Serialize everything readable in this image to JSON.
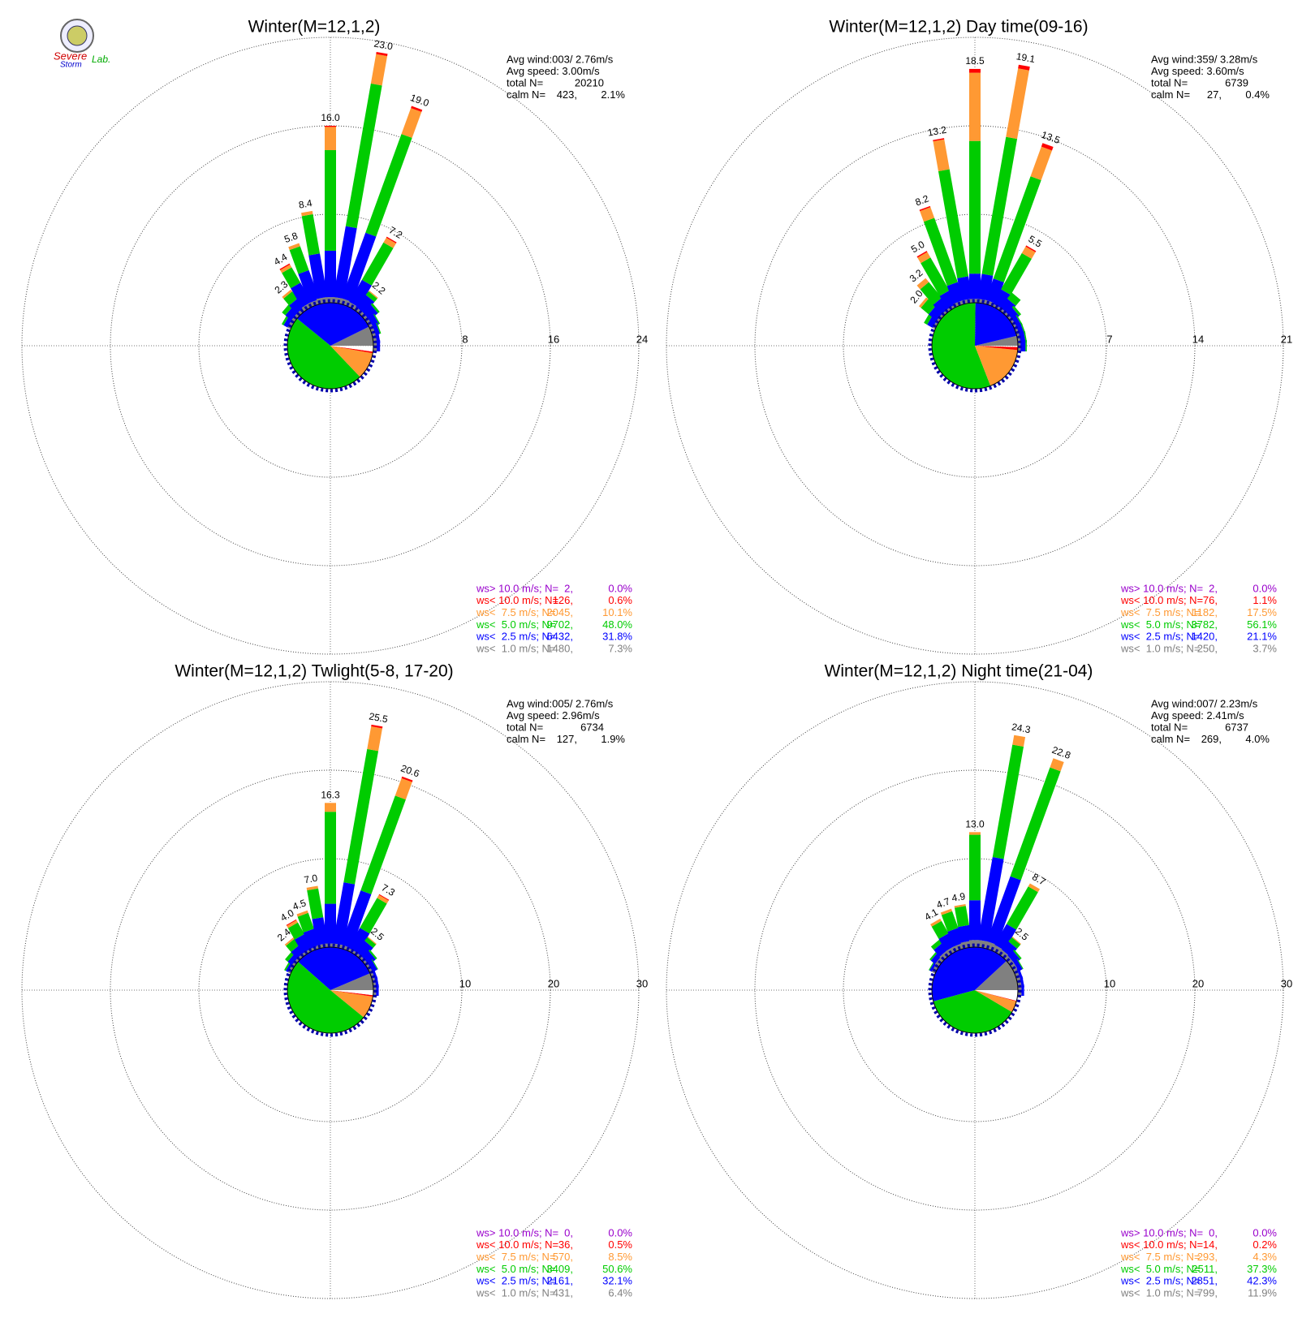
{
  "logo": {
    "line1": "Severe",
    "line2": "Storm",
    "line3": "Lab."
  },
  "chart_data": [
    {
      "type": "windrose",
      "title": "Winter(M=12,1,2)",
      "stats": {
        "avg_wind": "Avg wind:003/ 2.76m/s",
        "avg_speed": "Avg speed: 3.00m/s",
        "total_label": "total N=",
        "total": 20210,
        "calm_label": "calm N=",
        "calm": {
          "value": 423,
          "label": "423,"
        },
        "calm_percent": {
          "value": 2.1,
          "label": "2.1%"
        }
      },
      "rlim": [
        0,
        24
      ],
      "rticks": [
        8,
        16,
        24
      ],
      "directions": [
        300,
        310,
        320,
        330,
        340,
        350,
        0,
        10,
        20,
        30,
        40,
        50,
        60,
        70,
        80,
        90
      ],
      "total_labels": [
        null,
        null,
        2.3,
        4.4,
        5.8,
        8.4,
        {
          "value": 16,
          "label": "16.0"
        },
        {
          "value": 23,
          "label": "23.0"
        },
        {
          "value": 19,
          "label": "19.0"
        },
        7.2,
        2.2,
        null,
        null,
        null,
        null,
        null
      ],
      "series": [
        {
          "name": "ws<  1.0 m/s; N=",
          "color": "#808080",
          "values": [
            0.3,
            0.3,
            0.3,
            0.4,
            0.4,
            0.5,
            0.5,
            0.5,
            0.5,
            0.4,
            0.3,
            0.3,
            0.3,
            0.3,
            0.3,
            0.3
          ],
          "count": {
            "value": 1480,
            "label": "1480,"
          },
          "percent": {
            "value": 7.3,
            "label": "7.3%"
          }
        },
        {
          "name": "ws<  2.5 m/s; N=",
          "color": "#0000ff",
          "values": [
            0.4,
            0.7,
            1.0,
            2.0,
            2.8,
            4.0,
            4.2,
            6.5,
            6.3,
            2.3,
            1.4,
            1.0,
            0.6,
            0.4,
            0.3,
            0.3
          ],
          "count": {
            "value": 6432,
            "label": "6432,"
          },
          "percent": {
            "value": 31.8,
            "label": "31.8%"
          }
        },
        {
          "name": "ws<  5.0 m/s; N=",
          "color": "#00cc00",
          "values": [
            0.2,
            0.4,
            0.8,
            1.6,
            2.3,
            3.6,
            9.1,
            13.1,
            9.5,
            3.9,
            0.4,
            0.2,
            0.1,
            0.1,
            0,
            0
          ],
          "count": {
            "value": 9702,
            "label": "9702,"
          },
          "percent": {
            "value": 48.0,
            "label": "48.0%"
          }
        },
        {
          "name": "ws<  7.5 m/s; N=",
          "color": "#ff9933",
          "values": [
            0,
            0,
            0.2,
            0.3,
            0.3,
            0.3,
            2.1,
            2.7,
            2.5,
            0.5,
            0.1,
            0,
            0,
            0,
            0,
            0
          ],
          "count": {
            "value": 2045,
            "label": "2045,"
          },
          "percent": {
            "value": 10.1,
            "label": "10.1%"
          }
        },
        {
          "name": "ws< 10.0 m/s; N=",
          "color": "#ff0000",
          "values": [
            0,
            0,
            0,
            0.1,
            0,
            0,
            0.1,
            0.2,
            0.2,
            0.1,
            0,
            0,
            0,
            0,
            0,
            0
          ],
          "count": {
            "value": 126,
            "label": "126,"
          },
          "percent": {
            "value": 0.6,
            "label": "0.6%"
          }
        },
        {
          "name": "ws> 10.0 m/s; N=",
          "color": "#9900cc",
          "count": {
            "value": 2,
            "label": "2,"
          },
          "percent": {
            "value": 0.0,
            "label": "0.0%"
          }
        }
      ]
    },
    {
      "type": "windrose",
      "title": "Winter(M=12,1,2) Day time(09-16)",
      "stats": {
        "avg_wind": "Avg wind:359/ 3.28m/s",
        "avg_speed": "Avg speed: 3.60m/s",
        "total_label": "total N=",
        "total": 6739,
        "calm_label": "calm N=",
        "calm": {
          "value": 27,
          "label": "27,"
        },
        "calm_percent": {
          "value": 0.4,
          "label": "0.4%"
        }
      },
      "rlim": [
        0,
        21
      ],
      "rticks": [
        7,
        14,
        21
      ],
      "directions": [
        300,
        310,
        320,
        330,
        340,
        350,
        0,
        10,
        20,
        30,
        40,
        50,
        60,
        70,
        80,
        90
      ],
      "total_labels": [
        null,
        {
          "value": 2,
          "label": "2.0"
        },
        3.2,
        {
          "value": 5,
          "label": "5.0"
        },
        8.2,
        13.2,
        18.5,
        19.1,
        13.5,
        5.5,
        null,
        null,
        null,
        null,
        null,
        null
      ],
      "series": [
        {
          "name": "ws<  1.0 m/s; N=",
          "color": "#808080",
          "values": [
            0.2,
            0.2,
            0.2,
            0.2,
            0.3,
            0.3,
            0.3,
            0.3,
            0.3,
            0.2,
            0.2,
            0.2,
            0.2,
            0.2,
            0.2,
            0.2
          ],
          "count": {
            "value": 250,
            "label": "250,"
          },
          "percent": {
            "value": 3.7,
            "label": "3.7%"
          }
        },
        {
          "name": "ws<  2.5 m/s; N=",
          "color": "#0000ff",
          "values": [
            0.5,
            0.8,
            1.0,
            1.2,
            1.5,
            1.8,
            2.0,
            2.0,
            1.8,
            1.3,
            0.9,
            0.6,
            0.4,
            0.4,
            0.4,
            0.4
          ],
          "count": {
            "value": 1420,
            "label": "1420,"
          },
          "percent": {
            "value": 21.1,
            "label": "21.1%"
          }
        },
        {
          "name": "ws<  5.0 m/s; N=",
          "color": "#00cc00",
          "values": [
            0.3,
            0.8,
            1.6,
            3.0,
            5.4,
            8.6,
            10.5,
            11.0,
            8.6,
            3.3,
            0.6,
            0.2,
            0.1,
            0.1,
            0.1,
            0.1
          ],
          "count": {
            "value": 3782,
            "label": "3782,"
          },
          "percent": {
            "value": 56.1,
            "label": "56.1%"
          }
        },
        {
          "name": "ws<  7.5 m/s; N=",
          "color": "#ff9933",
          "values": [
            0,
            0.2,
            0.4,
            0.5,
            0.9,
            2.4,
            5.4,
            5.5,
            2.5,
            0.6,
            0,
            0,
            0,
            0,
            0,
            0
          ],
          "count": {
            "value": 1182,
            "label": "1182,"
          },
          "percent": {
            "value": 17.5,
            "label": "17.5%"
          }
        },
        {
          "name": "ws< 10.0 m/s; N=",
          "color": "#ff0000",
          "values": [
            0,
            0,
            0,
            0.1,
            0.1,
            0.1,
            0.3,
            0.3,
            0.3,
            0.1,
            0,
            0,
            0,
            0,
            0,
            0
          ],
          "count": {
            "value": 76,
            "label": "76,"
          },
          "percent": {
            "value": 1.1,
            "label": "1.1%"
          }
        },
        {
          "name": "ws> 10.0 m/s; N=",
          "color": "#9900cc",
          "count": {
            "value": 2,
            "label": "2,"
          },
          "percent": {
            "value": 0.0,
            "label": "0.0%"
          }
        }
      ]
    },
    {
      "type": "windrose",
      "title": "Winter(M=12,1,2) Twlight(5-8, 17-20)",
      "stats": {
        "avg_wind": "Avg wind:005/ 2.76m/s",
        "avg_speed": "Avg speed: 2.96m/s",
        "total_label": "total N=",
        "total": 6734,
        "calm_label": "calm N=",
        "calm": {
          "value": 127,
          "label": "127,"
        },
        "calm_percent": {
          "value": 1.9,
          "label": "1.9%"
        }
      },
      "rlim": [
        0,
        30
      ],
      "rticks": [
        10,
        20,
        30
      ],
      "directions": [
        300,
        310,
        320,
        330,
        340,
        350,
        0,
        10,
        20,
        30,
        40,
        50,
        60,
        70,
        80,
        90
      ],
      "total_labels": [
        null,
        null,
        2.4,
        {
          "value": 4,
          "label": "4.0"
        },
        4.5,
        {
          "value": 7,
          "label": "7.0"
        },
        16.3,
        25.5,
        20.6,
        7.3,
        2.5,
        null,
        null,
        null,
        null,
        null
      ],
      "series": [
        {
          "name": "ws<  1.0 m/s; N=",
          "color": "#808080",
          "values": [
            0.3,
            0.3,
            0.3,
            0.3,
            0.3,
            0.4,
            0.4,
            0.4,
            0.4,
            0.3,
            0.3,
            0.3,
            0.3,
            0.3,
            0.3,
            0.3
          ],
          "count": {
            "value": 431,
            "label": "431,"
          },
          "percent": {
            "value": 6.4,
            "label": "6.4%"
          }
        },
        {
          "name": "ws<  2.5 m/s; N=",
          "color": "#0000ff",
          "values": [
            0.3,
            0.6,
            1.0,
            1.8,
            2.0,
            3.0,
            4.5,
            7.0,
            6.5,
            2.6,
            1.6,
            1.0,
            0.6,
            0.3,
            0.3,
            0.3
          ],
          "count": {
            "value": 2161,
            "label": "2161,"
          },
          "percent": {
            "value": 32.1,
            "label": "32.1%"
          }
        },
        {
          "name": "ws<  5.0 m/s; N=",
          "color": "#00cc00",
          "values": [
            0.2,
            0.4,
            0.9,
            1.5,
            1.9,
            3.3,
            10.4,
            15.3,
            11.4,
            3.9,
            0.5,
            0.2,
            0.1,
            0,
            0,
            0
          ],
          "count": {
            "value": 3409,
            "label": "3409,"
          },
          "percent": {
            "value": 50.6,
            "label": "50.6%"
          }
        },
        {
          "name": "ws<  7.5 m/s; N=",
          "color": "#ff9933",
          "values": [
            0,
            0,
            0.2,
            0.3,
            0.3,
            0.3,
            1.0,
            2.6,
            2.1,
            0.4,
            0.1,
            0,
            0,
            0,
            0,
            0
          ],
          "count": {
            "value": 570,
            "label": "570,"
          },
          "percent": {
            "value": 8.5,
            "label": "8.5%"
          }
        },
        {
          "name": "ws< 10.0 m/s; N=",
          "color": "#ff0000",
          "values": [
            0,
            0,
            0,
            0.1,
            0,
            0,
            0,
            0.2,
            0.2,
            0.1,
            0,
            0,
            0,
            0,
            0,
            0
          ],
          "count": {
            "value": 36,
            "label": "36,"
          },
          "percent": {
            "value": 0.5,
            "label": "0.5%"
          }
        },
        {
          "name": "ws> 10.0 m/s; N=",
          "color": "#9900cc",
          "count": {
            "value": 0,
            "label": "0,"
          },
          "percent": {
            "value": 0.0,
            "label": "0.0%"
          }
        }
      ]
    },
    {
      "type": "windrose",
      "title": "Winter(M=12,1,2) Night time(21-04)",
      "stats": {
        "avg_wind": "Avg wind:007/ 2.23m/s",
        "avg_speed": "Avg speed: 2.41m/s",
        "total_label": "total N=",
        "total": 6737,
        "calm_label": "calm N=",
        "calm": {
          "value": 269,
          "label": "269,"
        },
        "calm_percent": {
          "value": 4.0,
          "label": "4.0%"
        }
      },
      "rlim": [
        0,
        30
      ],
      "rticks": [
        10,
        20,
        30
      ],
      "directions": [
        300,
        310,
        320,
        330,
        340,
        350,
        0,
        10,
        20,
        30,
        40,
        50,
        60,
        70,
        80,
        90
      ],
      "total_labels": [
        null,
        null,
        null,
        4.1,
        4.7,
        4.9,
        {
          "value": 13,
          "label": "13.0"
        },
        24.3,
        22.8,
        8.7,
        2.5,
        null,
        null,
        null,
        null,
        null
      ],
      "series": [
        {
          "name": "ws<  1.0 m/s; N=",
          "color": "#808080",
          "values": [
            0.4,
            0.5,
            0.6,
            0.6,
            0.6,
            0.7,
            0.8,
            0.8,
            0.8,
            0.7,
            0.6,
            0.5,
            0.5,
            0.4,
            0.4,
            0.4
          ],
          "count": {
            "value": 799,
            "label": "799,"
          },
          "percent": {
            "value": 11.9,
            "label": "11.9%"
          }
        },
        {
          "name": "ws<  2.5 m/s; N=",
          "color": "#0000ff",
          "values": [
            0.3,
            0.6,
            1.0,
            1.6,
            1.8,
            1.8,
            4.5,
            9.5,
            7.8,
            2.7,
            1.2,
            0.8,
            0.5,
            0.3,
            0.3,
            0.3
          ],
          "count": {
            "value": 2851,
            "label": "2851,"
          },
          "percent": {
            "value": 42.3,
            "label": "42.3%"
          }
        },
        {
          "name": "ws<  5.0 m/s; N=",
          "color": "#00cc00",
          "values": [
            0.1,
            0.2,
            0.5,
            1.6,
            2.0,
            2.2,
            7.4,
            12.9,
            13.1,
            4.9,
            0.6,
            0.2,
            0.1,
            0,
            0,
            0
          ],
          "count": {
            "value": 2511,
            "label": "2511,"
          },
          "percent": {
            "value": 37.3,
            "label": "37.3%"
          }
        },
        {
          "name": "ws<  7.5 m/s; N=",
          "color": "#ff9933",
          "values": [
            0,
            0,
            0,
            0.3,
            0.3,
            0.2,
            0.3,
            1.1,
            1.1,
            0.4,
            0.1,
            0,
            0,
            0,
            0,
            0
          ],
          "count": {
            "value": 293,
            "label": "293,"
          },
          "percent": {
            "value": 4.3,
            "label": "4.3%"
          }
        },
        {
          "name": "ws< 10.0 m/s; N=",
          "color": "#ff0000",
          "values": [
            0,
            0,
            0,
            0,
            0,
            0,
            0,
            0,
            0,
            0,
            0,
            0,
            0,
            0,
            0,
            0
          ],
          "count": {
            "value": 14,
            "label": "14,"
          },
          "percent": {
            "value": 0.2,
            "label": "0.2%"
          }
        },
        {
          "name": "ws> 10.0 m/s; N=",
          "color": "#9900cc",
          "count": {
            "value": 0,
            "label": "0,"
          },
          "percent": {
            "value": 0.0,
            "label": "0.0%"
          }
        }
      ]
    }
  ]
}
